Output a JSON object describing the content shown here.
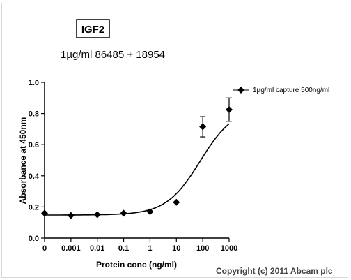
{
  "chart_data": {
    "type": "scatter",
    "title": "IGF2",
    "subtitle": "1µg/ml  86485 + 18954",
    "xlabel": "Protein conc (ng/ml)",
    "ylabel": "Absorbance at 450nm",
    "x_scale": "log",
    "x_ticks": [
      "0",
      "0.001",
      "0.01",
      "0.1",
      "1",
      "10",
      "100",
      "1000"
    ],
    "y_ticks": [
      "0.0",
      "0.2",
      "0.4",
      "0.6",
      "0.8",
      "1.0"
    ],
    "ylim": [
      0,
      1
    ],
    "legend_position": "right",
    "grid": false,
    "series": [
      {
        "name": "1µg/ml capture 500ng/ml",
        "marker": "diamond",
        "x": [
          "0",
          "0.001",
          "0.01",
          "0.1",
          "1",
          "10",
          "100",
          "1000"
        ],
        "y": [
          0.16,
          0.145,
          0.15,
          0.16,
          0.17,
          0.23,
          0.715,
          0.825
        ],
        "error": [
          0,
          0,
          0,
          0,
          0,
          0,
          0.065,
          0.075
        ]
      }
    ],
    "fit_curve": true
  },
  "footer": {
    "copyright": "Copyright (c) 2011 Abcam plc"
  }
}
